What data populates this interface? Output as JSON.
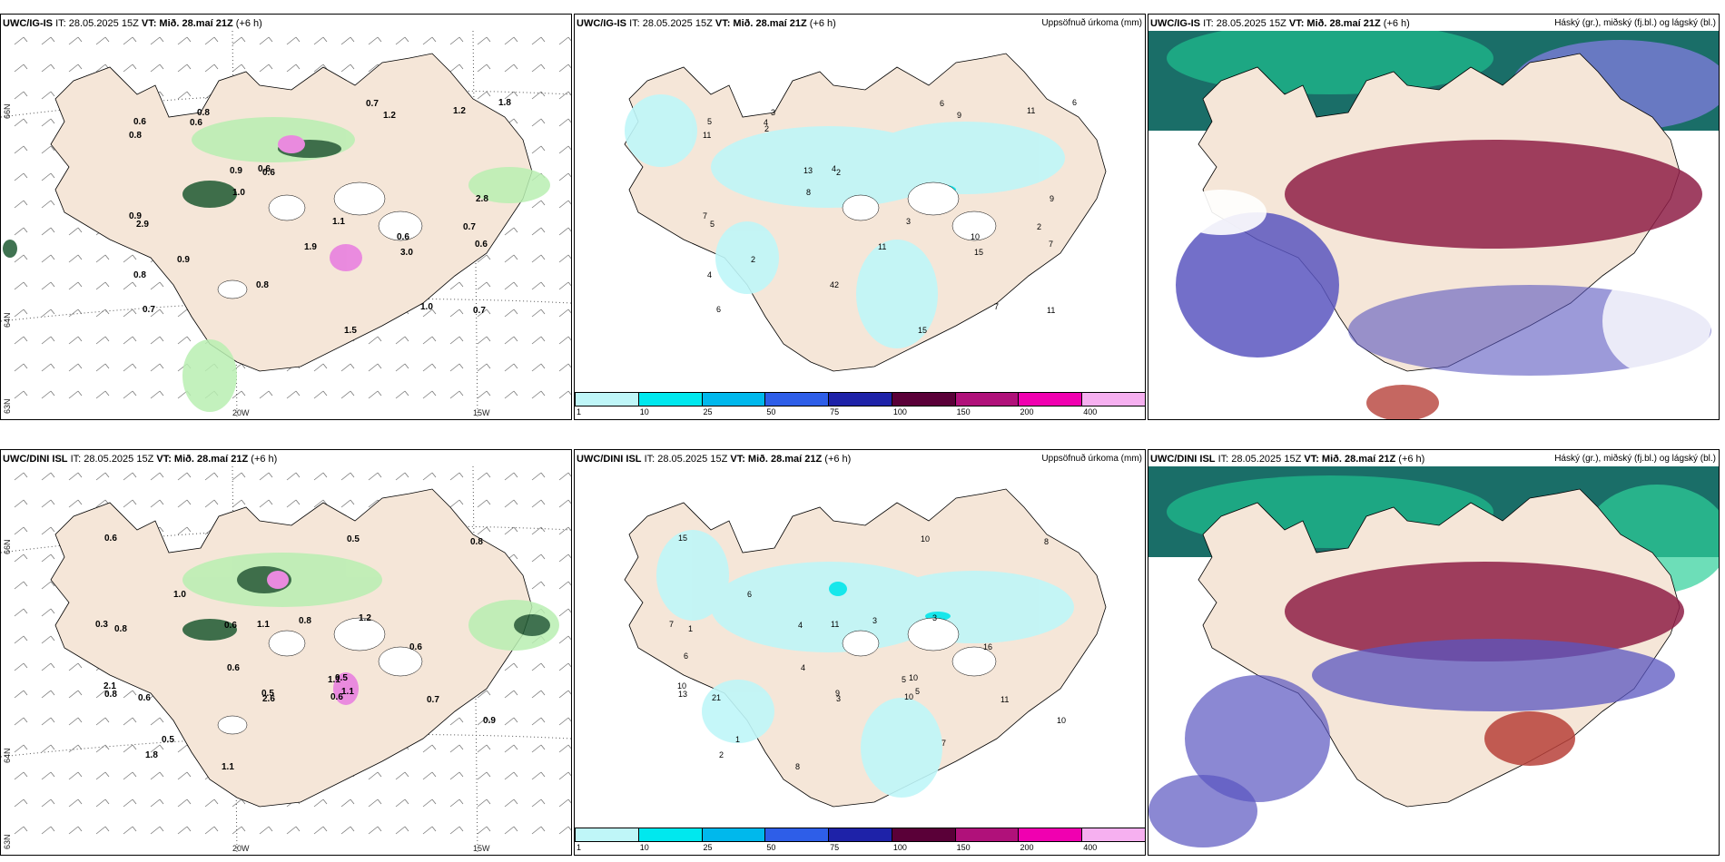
{
  "rows": [
    {
      "model": "UWC/IG-IS",
      "it": "IT: 28.05.2025 15Z",
      "vt_label": "VT:",
      "vt": "Mið. 28.maí 21Z",
      "lead": "(+6 h)",
      "wind_lon_labels": [
        "20W",
        "15W"
      ],
      "wind_lat_labels": [
        "66N",
        "64N",
        "63N"
      ],
      "wind_values": [
        "0.6",
        "0.7",
        "0.7",
        "0.8",
        "0.6",
        "1.0",
        "0.8",
        "1.2",
        "0.9",
        "1.5",
        "0.8",
        "0.9",
        "0.6",
        "0.7",
        "0.8",
        "2.8",
        "1.9",
        "1.1",
        "0.6",
        "0.9",
        "1.8",
        "1.2",
        "1.0",
        "0.6",
        "0.7",
        "0.6",
        "3.0",
        "2.9"
      ],
      "precip_values": [
        "10",
        "2",
        "6",
        "3",
        "2",
        "7",
        "4",
        "9",
        "13",
        "15",
        "11",
        "7",
        "5",
        "11",
        "42",
        "9",
        "11",
        "3",
        "4",
        "2",
        "6",
        "11",
        "8",
        "7",
        "6",
        "4",
        "15",
        "5",
        "2"
      ],
      "cloud_title_right": "Háský (gr.), miðský (fj.bl.) og lágský (bl.)"
    },
    {
      "model": "UWC/DINI ISL",
      "it": "IT: 28.05.2025 15Z",
      "vt_label": "VT:",
      "vt": "Mið. 28.maí 21Z",
      "lead": "(+6 h)",
      "wind_lon_labels": [
        "20W",
        "15W"
      ],
      "wind_lat_labels": [
        "66N",
        "64N",
        "63N"
      ],
      "wind_values": [
        "1.1",
        "0.8",
        "0.8",
        "0.6",
        "0.6",
        "1.1",
        "0.6",
        "0.5",
        "0.6",
        "0.8",
        "0.5",
        "0.3",
        "0.6",
        "0.5",
        "0.7",
        "0.9",
        "1.2",
        "0.8",
        "1.1",
        "1.0",
        "2.1",
        "1.1",
        "2.6",
        "1.8",
        "0.6",
        "0.5"
      ],
      "precip_values": [
        "5",
        "1",
        "8",
        "10",
        "4",
        "11",
        "16",
        "10",
        "4",
        "3",
        "1",
        "7",
        "21",
        "9",
        "11",
        "10",
        "3",
        "13",
        "8",
        "6",
        "10",
        "5",
        "3",
        "2",
        "15",
        "10",
        "7",
        "6"
      ],
      "cloud_title_right": "Háský (gr.), miðský (fj.bl.) og lágský (bl.)"
    }
  ],
  "precip_title_right": "Uppsöfnuð úrkoma (mm)",
  "colorbar": {
    "ticks": [
      "1",
      "10",
      "25",
      "50",
      "75",
      "100",
      "150",
      "200",
      "400"
    ],
    "colors": [
      "#bff6f8",
      "#00e8ee",
      "#00b8ec",
      "#2e5ee8",
      "#1e22a8",
      "#5a0038",
      "#b0117a",
      "#f000b0",
      "#f6b0f0"
    ]
  },
  "colors": {
    "land": "#f5e6d8",
    "sea": "#ffffff",
    "precip_light": "#bff6f8",
    "wind_green": "#b9efb2",
    "wind_dark": "#1f5a32",
    "wind_pink": "#e87ae0",
    "cloud_high": "#1a6e68",
    "cloud_mid": "#8e1e47",
    "cloud_low": "#5a56c0"
  }
}
